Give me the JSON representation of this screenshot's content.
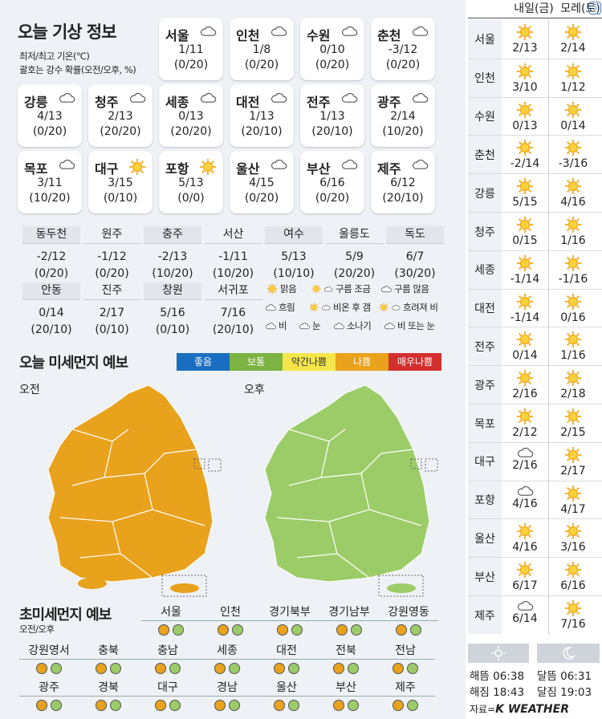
{
  "title": "오늘 기상 정보",
  "subtitle1": "최저/최고 기온(℃)",
  "subtitle2": "괄호는 강수 확률(오전/오후, %)",
  "cards": [
    {
      "name": "서울",
      "icon": "cloud",
      "temp": "1/11",
      "precip": "(0/20)"
    },
    {
      "name": "인천",
      "icon": "cloud",
      "temp": "1/8",
      "precip": "(0/20)"
    },
    {
      "name": "수원",
      "icon": "cloud",
      "temp": "0/10",
      "precip": "(0/20)"
    },
    {
      "name": "춘천",
      "icon": "cloud",
      "temp": "-3/12",
      "precip": "(0/20)"
    },
    {
      "name": "강릉",
      "icon": "cloud",
      "temp": "4/13",
      "precip": "(0/20)"
    },
    {
      "name": "청주",
      "icon": "cloud",
      "temp": "2/13",
      "precip": "(20/20)"
    },
    {
      "name": "세종",
      "icon": "cloud",
      "temp": "0/13",
      "precip": "(20/20)"
    },
    {
      "name": "대전",
      "icon": "cloud",
      "temp": "1/13",
      "precip": "(20/10)"
    },
    {
      "name": "전주",
      "icon": "cloud",
      "temp": "1/13",
      "precip": "(20/10)"
    },
    {
      "name": "광주",
      "icon": "cloud",
      "temp": "2/14",
      "precip": "(10/20)"
    },
    {
      "name": "목포",
      "icon": "cloud",
      "temp": "3/11",
      "precip": "(10/20)"
    },
    {
      "name": "대구",
      "icon": "sun",
      "temp": "3/15",
      "precip": "(0/10)"
    },
    {
      "name": "포항",
      "icon": "sun",
      "temp": "5/13",
      "precip": "(0/0)"
    },
    {
      "name": "울산",
      "icon": "cloud",
      "temp": "4/15",
      "precip": "(0/20)"
    },
    {
      "name": "부산",
      "icon": "cloud",
      "temp": "6/16",
      "precip": "(0/20)"
    },
    {
      "name": "제주",
      "icon": "cloud",
      "temp": "6/12",
      "precip": "(20/10)"
    }
  ],
  "minor_cities": [
    {
      "name": "동두천",
      "temp": "-2/12",
      "precip": "(0/20)"
    },
    {
      "name": "원주",
      "temp": "-1/12",
      "precip": "(0/20)"
    },
    {
      "name": "충주",
      "temp": "-2/13",
      "precip": "(10/20)"
    },
    {
      "name": "서산",
      "temp": "-1/11",
      "precip": "(10/20)"
    },
    {
      "name": "여수",
      "temp": "5/13",
      "precip": "(10/10)"
    },
    {
      "name": "울릉도",
      "temp": "5/9",
      "precip": "(20/20)"
    },
    {
      "name": "독도",
      "temp": "6/7",
      "precip": "(30/20)"
    },
    {
      "name": "안동",
      "temp": "0/14",
      "precip": "(20/10)"
    },
    {
      "name": "진주",
      "temp": "2/17",
      "precip": "(0/10)"
    },
    {
      "name": "창원",
      "temp": "5/16",
      "precip": "(0/10)"
    },
    {
      "name": "서귀포",
      "temp": "7/16",
      "precip": "(20/10)"
    }
  ],
  "legend": [
    "맑음",
    "구름 조금",
    "구름 많음",
    "흐림",
    "비온 후 갬",
    "흐려져 비",
    "비",
    "눈",
    "소나기",
    "비 또는 눈"
  ],
  "pm_title": "오늘 미세먼지 예보",
  "pm_levels": [
    {
      "label": "좋음",
      "color": "#1a6fc2"
    },
    {
      "label": "보통",
      "color": "#7cb342"
    },
    {
      "label": "약간나쁨",
      "color": "#f4e64a"
    },
    {
      "label": "나쁨",
      "color": "#e8a21c"
    },
    {
      "label": "매우나쁨",
      "color": "#d32f2f"
    }
  ],
  "map_am": "오전",
  "map_pm": "오후",
  "ultra_title": "초미세먼지 예보",
  "ultra_sub": "오전/오후",
  "ultra": [
    {
      "name": "서울",
      "am": "o",
      "pm": "g"
    },
    {
      "name": "인천",
      "am": "o",
      "pm": "g"
    },
    {
      "name": "경기북부",
      "am": "o",
      "pm": "g"
    },
    {
      "name": "경기남부",
      "am": "o",
      "pm": "g"
    },
    {
      "name": "강원영동",
      "am": "o",
      "pm": "g"
    },
    {
      "name": "강원영서",
      "am": "o",
      "pm": "g"
    },
    {
      "name": "충북",
      "am": "o",
      "pm": "g"
    },
    {
      "name": "충남",
      "am": "o",
      "pm": "g"
    },
    {
      "name": "세종",
      "am": "o",
      "pm": "g"
    },
    {
      "name": "대전",
      "am": "o",
      "pm": "g"
    },
    {
      "name": "전북",
      "am": "o",
      "pm": "g"
    },
    {
      "name": "전남",
      "am": "o",
      "pm": "g"
    },
    {
      "name": "광주",
      "am": "o",
      "pm": "g"
    },
    {
      "name": "경북",
      "am": "o",
      "pm": "g"
    },
    {
      "name": "대구",
      "am": "o",
      "pm": "g"
    },
    {
      "name": "경남",
      "am": "o",
      "pm": "g"
    },
    {
      "name": "울산",
      "am": "o",
      "pm": "g"
    },
    {
      "name": "부산",
      "am": "o",
      "pm": "g"
    },
    {
      "name": "제주",
      "am": "o",
      "pm": "g"
    }
  ],
  "forecast_header": {
    "tomorrow": "내일(금)",
    "dayafter": "모레(토)"
  },
  "forecast": [
    {
      "city": "서울",
      "d1": {
        "icon": "sun",
        "temp": "2/13"
      },
      "d2": {
        "icon": "sun",
        "temp": "2/14"
      }
    },
    {
      "city": "인천",
      "d1": {
        "icon": "sun",
        "temp": "3/10"
      },
      "d2": {
        "icon": "sun",
        "temp": "1/12"
      }
    },
    {
      "city": "수원",
      "d1": {
        "icon": "sun",
        "temp": "0/13"
      },
      "d2": {
        "icon": "sun",
        "temp": "0/14"
      }
    },
    {
      "city": "춘천",
      "d1": {
        "icon": "sun",
        "temp": "-2/14"
      },
      "d2": {
        "icon": "sun",
        "temp": "-3/16"
      }
    },
    {
      "city": "강릉",
      "d1": {
        "icon": "sun",
        "temp": "5/15"
      },
      "d2": {
        "icon": "sun",
        "temp": "4/16"
      }
    },
    {
      "city": "청주",
      "d1": {
        "icon": "sun",
        "temp": "0/15"
      },
      "d2": {
        "icon": "sun",
        "temp": "1/16"
      }
    },
    {
      "city": "세종",
      "d1": {
        "icon": "sun",
        "temp": "-1/14"
      },
      "d2": {
        "icon": "sun",
        "temp": "-1/16"
      }
    },
    {
      "city": "대전",
      "d1": {
        "icon": "sun",
        "temp": "-1/14"
      },
      "d2": {
        "icon": "sun",
        "temp": "0/16"
      }
    },
    {
      "city": "전주",
      "d1": {
        "icon": "sun",
        "temp": "0/14"
      },
      "d2": {
        "icon": "sun",
        "temp": "1/16"
      }
    },
    {
      "city": "광주",
      "d1": {
        "icon": "sun",
        "temp": "2/16"
      },
      "d2": {
        "icon": "sun",
        "temp": "2/18"
      }
    },
    {
      "city": "목포",
      "d1": {
        "icon": "sun",
        "temp": "2/12"
      },
      "d2": {
        "icon": "sun",
        "temp": "2/15"
      }
    },
    {
      "city": "대구",
      "d1": {
        "icon": "cloud",
        "temp": "2/16"
      },
      "d2": {
        "icon": "sun",
        "temp": "2/17"
      }
    },
    {
      "city": "포항",
      "d1": {
        "icon": "cloud",
        "temp": "4/16"
      },
      "d2": {
        "icon": "sun",
        "temp": "4/17"
      }
    },
    {
      "city": "울산",
      "d1": {
        "icon": "sun",
        "temp": "4/16"
      },
      "d2": {
        "icon": "sun",
        "temp": "3/16"
      }
    },
    {
      "city": "부산",
      "d1": {
        "icon": "sun",
        "temp": "6/17"
      },
      "d2": {
        "icon": "sun",
        "temp": "6/16"
      }
    },
    {
      "city": "제주",
      "d1": {
        "icon": "cloud",
        "temp": "6/14"
      },
      "d2": {
        "icon": "sun",
        "temp": "7/16"
      }
    }
  ],
  "sun": {
    "rise": "해뜸 06:38",
    "set": "해짐 18:43"
  },
  "moon": {
    "rise": "달뜸 06:31",
    "set": "달짐 19:03"
  },
  "source_prefix": "자료=",
  "source_brand": "K WEATHER",
  "corner_badge": "5"
}
